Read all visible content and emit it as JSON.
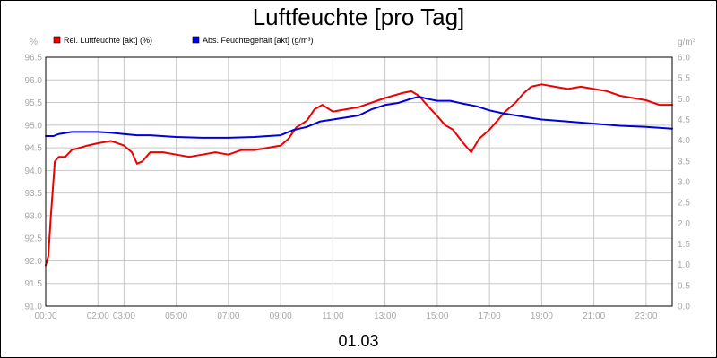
{
  "chart_data": {
    "type": "line",
    "title": "Luftfeuchte [pro Tag]",
    "subtitle": "01.03",
    "left_unit": "%",
    "right_unit": "g/m³",
    "y_left": {
      "min": 91.0,
      "max": 96.5,
      "ticks": [
        "96.5",
        "96.0",
        "95.5",
        "95.0",
        "94.5",
        "94.0",
        "93.5",
        "93.0",
        "92.5",
        "92.0",
        "91.5",
        "91.0"
      ]
    },
    "y_right": {
      "min": 0.0,
      "max": 6.0,
      "ticks": [
        "6.0",
        "5.5",
        "5.0",
        "4.5",
        "4.0",
        "3.5",
        "3.0",
        "2.5",
        "2.0",
        "1.5",
        "1.0",
        "0.5",
        "0.0"
      ]
    },
    "x_ticks": [
      "00:00",
      "02:00",
      "03:00",
      "05:00",
      "07:00",
      "09:00",
      "11:00",
      "13:00",
      "15:00",
      "17:00",
      "19:00",
      "21:00",
      "23:00"
    ],
    "x_tick_hours": [
      0,
      2,
      3,
      5,
      7,
      9,
      11,
      13,
      15,
      17,
      19,
      21,
      23
    ],
    "x_range_hours": [
      0,
      24
    ],
    "grid": true,
    "legend_position": "top-left",
    "series": [
      {
        "name": "Rel. Luftfeuchte [akt] (%)",
        "axis": "left",
        "color": "#ee0000",
        "x": [
          0,
          0.1,
          0.2,
          0.35,
          0.5,
          0.75,
          1,
          1.3,
          1.6,
          2,
          2.5,
          3,
          3.3,
          3.5,
          3.7,
          4,
          4.5,
          5,
          5.5,
          6,
          6.5,
          7,
          7.5,
          8,
          8.5,
          9,
          9.3,
          9.6,
          10,
          10.3,
          10.6,
          11,
          11.5,
          12,
          12.5,
          13,
          13.3,
          13.6,
          14,
          14.3,
          14.6,
          15,
          15.3,
          15.6,
          16,
          16.3,
          16.6,
          17,
          17.3,
          17.6,
          18,
          18.3,
          18.6,
          19,
          19.5,
          20,
          20.5,
          21,
          21.5,
          22,
          22.5,
          23,
          23.5,
          24
        ],
        "y": [
          91.9,
          92.1,
          93.0,
          94.2,
          94.3,
          94.3,
          94.45,
          94.5,
          94.55,
          94.6,
          94.65,
          94.55,
          94.4,
          94.15,
          94.2,
          94.4,
          94.4,
          94.35,
          94.3,
          94.35,
          94.4,
          94.35,
          94.45,
          94.45,
          94.5,
          94.55,
          94.7,
          94.95,
          95.1,
          95.35,
          95.45,
          95.3,
          95.35,
          95.4,
          95.5,
          95.6,
          95.65,
          95.7,
          95.75,
          95.65,
          95.45,
          95.2,
          95.0,
          94.9,
          94.6,
          94.4,
          94.7,
          94.9,
          95.1,
          95.3,
          95.5,
          95.7,
          95.85,
          95.9,
          95.85,
          95.8,
          95.85,
          95.8,
          95.75,
          95.65,
          95.6,
          95.55,
          95.45,
          95.45
        ]
      },
      {
        "name": "Abs. Feuchtegehalt [akt] (g/m³)",
        "axis": "right",
        "color": "#0000dd",
        "x": [
          0,
          0.3,
          0.5,
          1,
          1.5,
          2,
          2.5,
          3,
          3.5,
          4,
          5,
          6,
          7,
          8,
          8.5,
          9,
          9.5,
          10,
          10.5,
          11,
          11.5,
          12,
          12.5,
          13,
          13.5,
          14,
          14.3,
          14.6,
          15,
          15.5,
          16,
          16.5,
          17,
          17.5,
          18,
          18.5,
          19,
          20,
          21,
          22,
          23,
          24
        ],
        "y": [
          4.1,
          4.1,
          4.15,
          4.2,
          4.2,
          4.2,
          4.18,
          4.15,
          4.12,
          4.12,
          4.08,
          4.06,
          4.06,
          4.08,
          4.1,
          4.12,
          4.25,
          4.32,
          4.45,
          4.5,
          4.55,
          4.6,
          4.75,
          4.85,
          4.9,
          5.0,
          5.05,
          5.0,
          4.95,
          4.95,
          4.88,
          4.82,
          4.72,
          4.65,
          4.6,
          4.55,
          4.5,
          4.45,
          4.4,
          4.35,
          4.32,
          4.28
        ]
      }
    ]
  }
}
